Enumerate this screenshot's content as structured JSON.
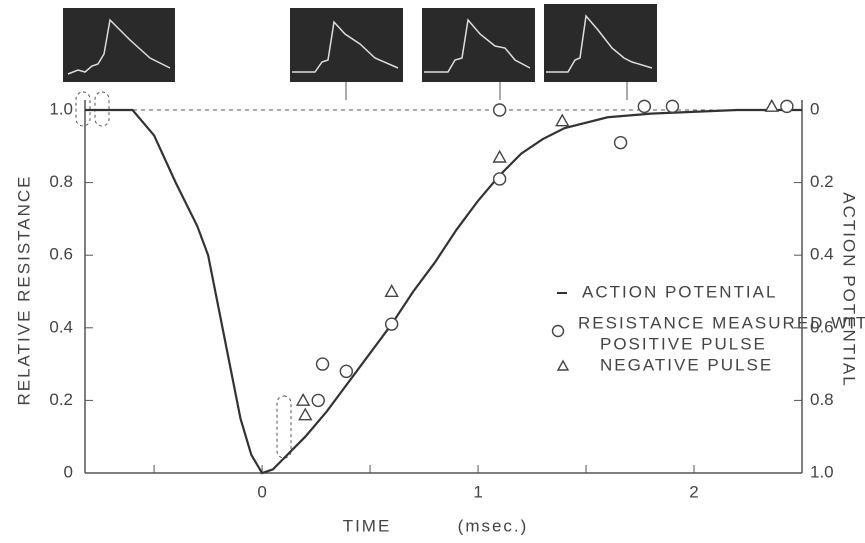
{
  "chart_data": {
    "type": "line",
    "x_label": "TIME",
    "x_unit": "(msec.)",
    "y_label": "RELATIVE RESISTANCE",
    "y2_label": "ACTION POTENTIAL",
    "legend_heading": "RESISTANCE MEASURED WITH",
    "xlim": [
      -0.82,
      2.5
    ],
    "xticks": [
      0,
      1,
      2
    ],
    "xminorticks": [
      -0.5,
      0.5,
      1.5
    ],
    "ylim": [
      0,
      1.0
    ],
    "yticks": [
      0,
      0.2,
      0.4,
      0.6,
      0.8,
      {
        "value": 1.0,
        "label": "1.0"
      }
    ],
    "y2lim": [
      1.0,
      0
    ],
    "y2ticks": [
      {
        "value": 1.0,
        "label": "1.0"
      },
      0.8,
      0.6,
      0.4,
      0.2,
      0
    ],
    "series": [
      {
        "name": "ACTION POTENTIAL",
        "marker": "line",
        "color": "#333333",
        "x": [
          -0.82,
          -0.6,
          -0.5,
          -0.4,
          -0.3,
          -0.25,
          -0.2,
          -0.15,
          -0.1,
          -0.05,
          0,
          0.05,
          0.1,
          0.2,
          0.3,
          0.4,
          0.5,
          0.6,
          0.7,
          0.8,
          0.9,
          1.0,
          1.1,
          1.2,
          1.3,
          1.4,
          1.6,
          1.8,
          2.2,
          2.5
        ],
        "values": [
          1.0,
          1.0,
          0.93,
          0.8,
          0.68,
          0.6,
          0.45,
          0.3,
          0.15,
          0.05,
          0.0,
          0.01,
          0.04,
          0.1,
          0.17,
          0.25,
          0.33,
          0.41,
          0.5,
          0.58,
          0.67,
          0.75,
          0.82,
          0.88,
          0.92,
          0.95,
          0.98,
          0.99,
          1.0,
          1.0
        ]
      },
      {
        "name": "POSITIVE PULSE",
        "marker": "circle",
        "color": "#444444",
        "x": [
          0.28,
          0.26,
          0.39,
          0.6,
          1.1,
          1.1,
          1.66,
          1.77,
          1.9,
          2.43
        ],
        "values": [
          0.3,
          0.2,
          0.28,
          0.41,
          0.81,
          1.0,
          0.91,
          1.01,
          1.01,
          1.01
        ]
      },
      {
        "name": "NEGATIVE PULSE",
        "marker": "triangle",
        "color": "#444444",
        "x": [
          0.19,
          0.2,
          0.6,
          1.1,
          1.39,
          2.36
        ],
        "values": [
          0.2,
          0.16,
          0.5,
          0.87,
          0.97,
          1.01
        ]
      }
    ]
  }
}
